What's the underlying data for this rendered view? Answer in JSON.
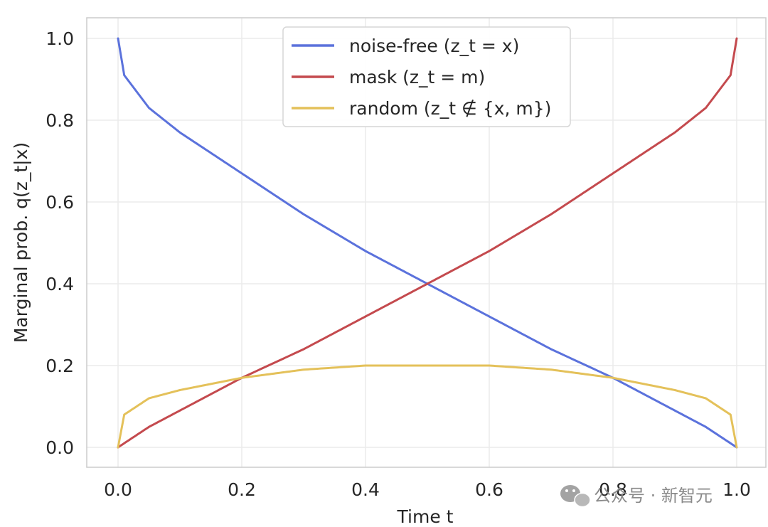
{
  "chart_data": {
    "type": "line",
    "xlabel": "Time t",
    "ylabel": "Marginal prob. q(z_t|x)",
    "xlim": [
      -0.05,
      1.05
    ],
    "ylim": [
      -0.05,
      1.05
    ],
    "xticks": [
      "0.0",
      "0.2",
      "0.4",
      "0.6",
      "0.8",
      "1.0"
    ],
    "yticks": [
      "0.0",
      "0.2",
      "0.4",
      "0.6",
      "0.8",
      "1.0"
    ],
    "grid": true,
    "legend_position": "top-center",
    "x": [
      0.0,
      0.01,
      0.05,
      0.1,
      0.2,
      0.3,
      0.4,
      0.5,
      0.6,
      0.7,
      0.8,
      0.9,
      0.95,
      0.99,
      1.0
    ],
    "series": [
      {
        "name": "noise-free (z_t = x)",
        "color": "#5b72dc",
        "values": [
          1.0,
          0.91,
          0.83,
          0.77,
          0.67,
          0.57,
          0.48,
          0.4,
          0.32,
          0.24,
          0.17,
          0.09,
          0.05,
          0.01,
          0.0
        ]
      },
      {
        "name": "mask (z_t = m)",
        "color": "#c44a4e",
        "values": [
          0.0,
          0.01,
          0.05,
          0.09,
          0.17,
          0.24,
          0.32,
          0.4,
          0.48,
          0.57,
          0.67,
          0.77,
          0.83,
          0.91,
          1.0
        ]
      },
      {
        "name": "random (z_t ∉ {x, m})",
        "color": "#e4c15a",
        "values": [
          0.0,
          0.08,
          0.12,
          0.14,
          0.17,
          0.19,
          0.2,
          0.2,
          0.2,
          0.19,
          0.17,
          0.14,
          0.12,
          0.08,
          0.0
        ]
      }
    ]
  },
  "watermark": {
    "text": "公众号 · 新智元",
    "icon": "wechat-icon"
  }
}
